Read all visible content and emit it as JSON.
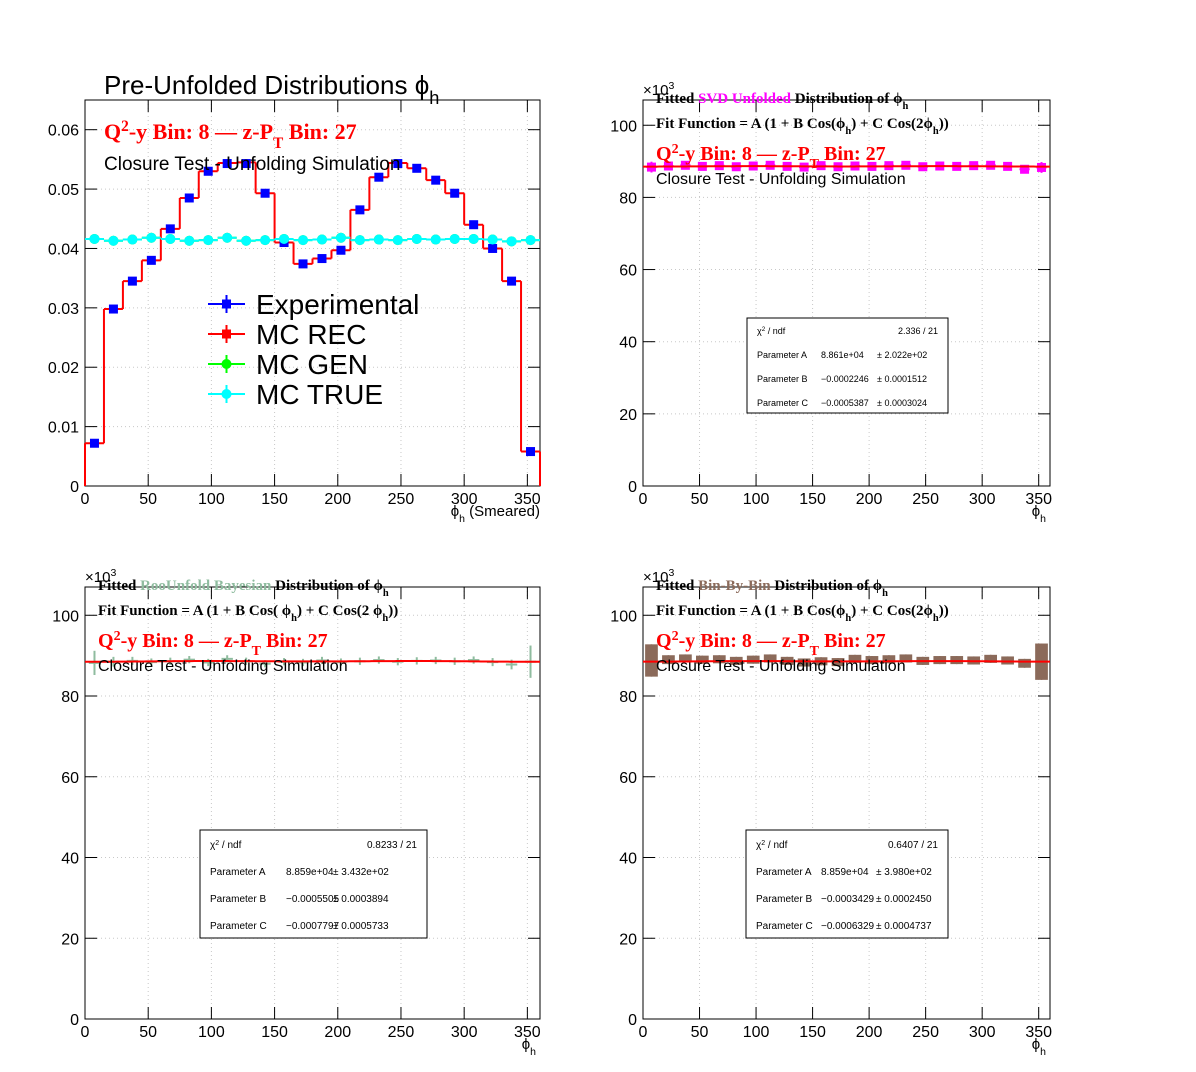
{
  "chart_data": [
    {
      "type": "histogram",
      "title": [
        "Pre-Unfolded Distributions ϕ",
        {
          "sub": "h"
        }
      ],
      "bin_label": [
        "Q",
        {
          "sup": "2"
        },
        "-y Bin: 8  —  z-P",
        {
          "sub": "T"
        },
        " Bin: 27"
      ],
      "bin_label_color": "#ff0000",
      "subtitle": [
        "Closure Test - Unfolding Simulation"
      ],
      "xlabel": [
        "ϕ",
        {
          "sub": "h"
        },
        " (Smeared)"
      ],
      "bins": [
        0,
        15,
        30,
        45,
        60,
        75,
        90,
        105,
        120,
        135,
        150,
        165,
        180,
        195,
        210,
        225,
        240,
        255,
        270,
        285,
        300,
        315,
        330,
        345,
        360
      ],
      "xlim": [
        0,
        360
      ],
      "xticks": [
        0,
        50,
        100,
        150,
        200,
        250,
        300,
        350
      ],
      "ylim": [
        0,
        0.065
      ],
      "yticks": [
        0,
        0.01,
        0.02,
        0.03,
        0.04,
        0.05,
        0.06
      ],
      "grid": true,
      "series": [
        {
          "name": "Experimental",
          "color": "#0000ff",
          "style": "square",
          "values": [
            0.0072,
            0.0298,
            0.0345,
            0.038,
            0.0433,
            0.0485,
            0.053,
            0.0543,
            0.0543,
            0.0493,
            0.041,
            0.0374,
            0.0383,
            0.0397,
            0.0465,
            0.052,
            0.0543,
            0.0535,
            0.0515,
            0.0493,
            0.044,
            0.04,
            0.0345,
            0.0058
          ]
        },
        {
          "name": "MC REC",
          "color": "#ff0000",
          "style": "step",
          "values": [
            0.0072,
            0.0298,
            0.0345,
            0.038,
            0.0433,
            0.0485,
            0.053,
            0.0544,
            0.0545,
            0.0493,
            0.041,
            0.0374,
            0.0383,
            0.0397,
            0.0465,
            0.052,
            0.0544,
            0.0535,
            0.0515,
            0.0493,
            0.044,
            0.04,
            0.0345,
            0.0058
          ]
        },
        {
          "name": "MC GEN",
          "color": "#00ff00",
          "style": "circle",
          "values": [
            0.0416,
            0.0413,
            0.0415,
            0.0418,
            0.0416,
            0.0413,
            0.0414,
            0.0418,
            0.0413,
            0.0414,
            0.0416,
            0.0414,
            0.0415,
            0.0418,
            0.0414,
            0.0415,
            0.0414,
            0.0416,
            0.0415,
            0.0416,
            0.0416,
            0.0415,
            0.0412,
            0.0414
          ]
        },
        {
          "name": "MC TRUE",
          "color": "#00ffff",
          "style": "circle",
          "values": [
            0.0416,
            0.0413,
            0.0415,
            0.0418,
            0.0416,
            0.0413,
            0.0414,
            0.0418,
            0.0413,
            0.0414,
            0.0416,
            0.0414,
            0.0415,
            0.0418,
            0.0414,
            0.0415,
            0.0414,
            0.0416,
            0.0415,
            0.0416,
            0.0416,
            0.0415,
            0.0412,
            0.0414
          ]
        }
      ]
    },
    {
      "type": "fit",
      "axis_multiplier": [
        "×10",
        {
          "sup": "3"
        }
      ],
      "title": [
        "Fitted  ",
        {
          "text": "SVD Unfolded",
          "color": "#ff00ff"
        },
        " Distribution of  ϕ",
        {
          "sub": "h"
        }
      ],
      "fit_function": [
        "Fit Function = A (1 + B Cos(ϕ",
        {
          "sub": "h"
        },
        ") + C Cos(2ϕ",
        {
          "sub": "h"
        },
        "))"
      ],
      "bin_label": [
        "Q",
        {
          "sup": "2"
        },
        "-y Bin: 8  —  z-P",
        {
          "sub": "T"
        },
        " Bin: 27"
      ],
      "bin_label_color": "#ff0000",
      "subtitle": [
        "Closure Test - Unfolding Simulation"
      ],
      "xlabel": [
        "ϕ",
        {
          "sub": "h"
        }
      ],
      "xlim": [
        0,
        360
      ],
      "xticks": [
        0,
        50,
        100,
        150,
        200,
        250,
        300,
        350
      ],
      "ylim": [
        0,
        107000
      ],
      "yticks": [
        0,
        {
          "value": 20000,
          "label": "20"
        },
        {
          "value": 40000,
          "label": "40"
        },
        {
          "value": 60000,
          "label": "60"
        },
        {
          "value": 80000,
          "label": "80"
        },
        {
          "value": 100000,
          "label": "100"
        }
      ],
      "grid": true,
      "color": "#ff00ff",
      "marker": "square",
      "x": [
        7.5,
        22.5,
        37.5,
        52.5,
        67.5,
        82.5,
        97.5,
        112.5,
        127.5,
        142.5,
        157.5,
        172.5,
        187.5,
        202.5,
        217.5,
        232.5,
        247.5,
        262.5,
        277.5,
        292.5,
        307.5,
        322.5,
        337.5,
        352.5
      ],
      "values": [
        88400,
        88700,
        88900,
        88600,
        88800,
        88500,
        88700,
        88900,
        88600,
        88400,
        88800,
        88500,
        88700,
        88600,
        88800,
        88900,
        88500,
        88700,
        88600,
        88800,
        88900,
        88600,
        87800,
        88300
      ],
      "errors": [
        1500,
        600,
        600,
        600,
        600,
        600,
        600,
        600,
        600,
        600,
        600,
        600,
        600,
        600,
        600,
        600,
        600,
        600,
        600,
        600,
        600,
        600,
        600,
        1500
      ],
      "fit": {
        "color": "#ff0000",
        "A": 88610,
        "B": -0.0002246,
        "C": -0.0005387
      },
      "stats": [
        {
          "name": [
            "χ",
            {
              "sup": "2"
            },
            " / ndf"
          ],
          "value_label": "2.336 / 21"
        },
        {
          "name": [
            "Parameter A"
          ],
          "value_label": "8.861e+04",
          "error_label": "± 2.022e+02"
        },
        {
          "name": [
            "Parameter B"
          ],
          "value_label": "−0.0002246",
          "error_label": "± 0.0001512"
        },
        {
          "name": [
            "Parameter C"
          ],
          "value_label": "−0.0005387",
          "error_label": "± 0.0003024"
        }
      ]
    },
    {
      "type": "fit",
      "axis_multiplier": [
        "×10",
        {
          "sup": "3"
        }
      ],
      "title": [
        "Fitted   ",
        {
          "text": "RooUnfold Bayesian",
          "color": "#8fbc9f"
        },
        "   Distribution of    ϕ",
        {
          "sub": "h"
        }
      ],
      "fit_function": [
        "Fit Function = A (1 + B Cos(   ϕ",
        {
          "sub": "h"
        },
        ") + C Cos(2 ϕ",
        {
          "sub": "h"
        },
        "))"
      ],
      "bin_label": [
        "Q",
        {
          "sup": "2"
        },
        "-y Bin: 8  —  z-P",
        {
          "sub": "T"
        },
        " Bin: 27"
      ],
      "bin_label_color": "#ff0000",
      "subtitle": [
        "Closure Test - Unfolding Simulation"
      ],
      "xlabel": [
        "ϕ",
        {
          "sub": "h"
        }
      ],
      "xlim": [
        0,
        360
      ],
      "xticks": [
        0,
        50,
        100,
        150,
        200,
        250,
        300,
        350
      ],
      "ylim": [
        0,
        107000
      ],
      "yticks": [
        0,
        {
          "value": 20000,
          "label": "20"
        },
        {
          "value": 40000,
          "label": "40"
        },
        {
          "value": 60000,
          "label": "60"
        },
        {
          "value": 80000,
          "label": "80"
        },
        {
          "value": 100000,
          "label": "100"
        }
      ],
      "grid": true,
      "color": "#8fbc9f",
      "marker": "cross",
      "x": [
        7.5,
        22.5,
        37.5,
        52.5,
        67.5,
        82.5,
        97.5,
        112.5,
        127.5,
        142.5,
        157.5,
        172.5,
        187.5,
        202.5,
        217.5,
        232.5,
        247.5,
        262.5,
        277.5,
        292.5,
        307.5,
        322.5,
        337.5,
        352.5
      ],
      "values": [
        88200,
        88500,
        88700,
        88400,
        88600,
        89000,
        88300,
        89200,
        88600,
        88000,
        88500,
        88300,
        88800,
        88400,
        88600,
        88900,
        88500,
        88700,
        88800,
        88600,
        88900,
        88400,
        87800,
        88500
      ],
      "errors": [
        3000,
        1200,
        1000,
        900,
        900,
        900,
        900,
        900,
        900,
        900,
        900,
        900,
        900,
        900,
        900,
        900,
        900,
        900,
        900,
        900,
        900,
        1000,
        1200,
        4000
      ],
      "fit": {
        "color": "#ff0000",
        "A": 88590,
        "B": -0.0005505,
        "C": -0.0007797
      },
      "stats": [
        {
          "name": [
            "χ",
            {
              "sup": "2"
            },
            " / ndf"
          ],
          "value_label": "0.8233 / 21"
        },
        {
          "name": [
            "Parameter A"
          ],
          "value_label": "8.859e+04",
          "error_label": "± 3.432e+02"
        },
        {
          "name": [
            "Parameter B"
          ],
          "value_label": "−0.0005505",
          "error_label": "± 0.0003894"
        },
        {
          "name": [
            "Parameter C"
          ],
          "value_label": "−0.0007797",
          "error_label": "± 0.0005733"
        }
      ]
    },
    {
      "type": "fit",
      "axis_multiplier": [
        "×10",
        {
          "sup": "3"
        }
      ],
      "title": [
        "Fitted  ",
        {
          "text": "Bin-By-Bin",
          "color": "#8b6a5a"
        },
        " Distribution of  ϕ",
        {
          "sub": "h"
        }
      ],
      "fit_function": [
        "Fit Function = A (1 + B Cos(ϕ",
        {
          "sub": "h"
        },
        ") + C Cos(2ϕ",
        {
          "sub": "h"
        },
        "))"
      ],
      "bin_label": [
        "Q",
        {
          "sup": "2"
        },
        "-y Bin: 8  —  z-P",
        {
          "sub": "T"
        },
        " Bin: 27"
      ],
      "bin_label_color": "#ff0000",
      "subtitle": [
        "Closure Test - Unfolding Simulation"
      ],
      "xlabel": [
        "ϕ",
        {
          "sub": "h"
        }
      ],
      "xlim": [
        0,
        360
      ],
      "xticks": [
        0,
        50,
        100,
        150,
        200,
        250,
        300,
        350
      ],
      "ylim": [
        0,
        107000
      ],
      "yticks": [
        0,
        {
          "value": 20000,
          "label": "20"
        },
        {
          "value": 40000,
          "label": "40"
        },
        {
          "value": 60000,
          "label": "60"
        },
        {
          "value": 80000,
          "label": "80"
        },
        {
          "value": 100000,
          "label": "100"
        }
      ],
      "grid": true,
      "color": "#8b6a5a",
      "marker": "box",
      "x": [
        7.5,
        22.5,
        37.5,
        52.5,
        67.5,
        82.5,
        97.5,
        112.5,
        127.5,
        142.5,
        157.5,
        172.5,
        187.5,
        202.5,
        217.5,
        232.5,
        247.5,
        262.5,
        277.5,
        292.5,
        307.5,
        322.5,
        337.5,
        352.5
      ],
      "values": [
        88800,
        89000,
        89300,
        89000,
        89100,
        88700,
        89000,
        89300,
        88700,
        88300,
        88600,
        88400,
        89200,
        88900,
        89100,
        89300,
        88700,
        88900,
        88900,
        88800,
        89200,
        88800,
        88100,
        88500
      ],
      "errors": [
        4000,
        1100,
        1000,
        1000,
        1000,
        1000,
        1000,
        1000,
        1000,
        1000,
        1000,
        1000,
        1000,
        1000,
        1000,
        1000,
        1000,
        1000,
        1000,
        1000,
        1000,
        1000,
        1100,
        4500
      ],
      "fit": {
        "color": "#ff0000",
        "A": 88590,
        "B": -0.0003429,
        "C": -0.0006329
      },
      "stats": [
        {
          "name": [
            "χ",
            {
              "sup": "2"
            },
            " / ndf"
          ],
          "value_label": "0.6407 / 21"
        },
        {
          "name": [
            "Parameter A"
          ],
          "value_label": "8.859e+04",
          "error_label": "± 3.980e+02"
        },
        {
          "name": [
            "Parameter B"
          ],
          "value_label": "−0.0003429",
          "error_label": "± 0.0002450"
        },
        {
          "name": [
            "Parameter C"
          ],
          "value_label": "−0.0006329",
          "error_label": "± 0.0004737"
        }
      ]
    }
  ]
}
